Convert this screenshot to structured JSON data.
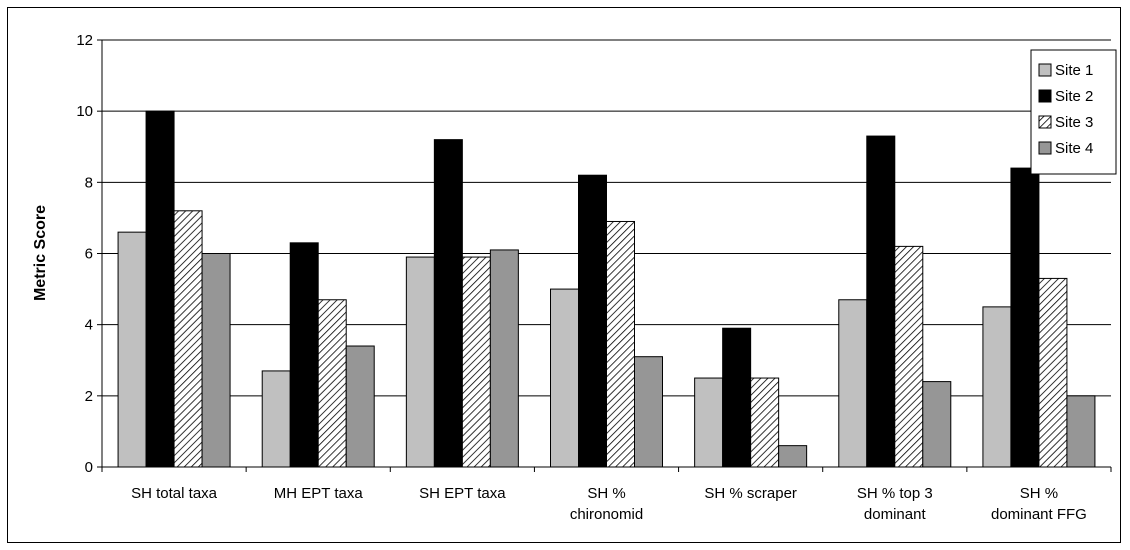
{
  "chart_data": {
    "type": "bar",
    "title": "",
    "xlabel": "",
    "ylabel": "Metric Score",
    "ylim": [
      0,
      12
    ],
    "yticks": [
      "0",
      "2",
      "4",
      "6",
      "8",
      "10",
      "12"
    ],
    "grid": true,
    "legend_position": "top-right",
    "categories": [
      [
        "SH total taxa"
      ],
      [
        "MH EPT taxa"
      ],
      [
        "SH EPT taxa"
      ],
      [
        "SH %",
        "chironomid"
      ],
      [
        "SH % scraper"
      ],
      [
        "SH % top 3",
        "dominant"
      ],
      [
        "SH %",
        "dominant FFG"
      ]
    ],
    "series": [
      {
        "name": "Site 1",
        "fill": "#c0c0c0",
        "pattern": "solid",
        "values": [
          6.6,
          2.7,
          5.9,
          5.0,
          2.5,
          4.7,
          4.5
        ]
      },
      {
        "name": "Site 2",
        "fill": "#000000",
        "pattern": "solid",
        "values": [
          10.0,
          6.3,
          9.2,
          8.2,
          3.9,
          9.3,
          8.4
        ]
      },
      {
        "name": "Site 3",
        "fill": "#ffffff",
        "pattern": "hatch",
        "values": [
          7.2,
          4.7,
          5.9,
          6.9,
          2.5,
          6.2,
          5.3
        ]
      },
      {
        "name": "Site 4",
        "fill": "#969696",
        "pattern": "solid",
        "values": [
          6.0,
          3.4,
          6.1,
          3.1,
          0.6,
          2.4,
          2.0
        ]
      }
    ]
  }
}
